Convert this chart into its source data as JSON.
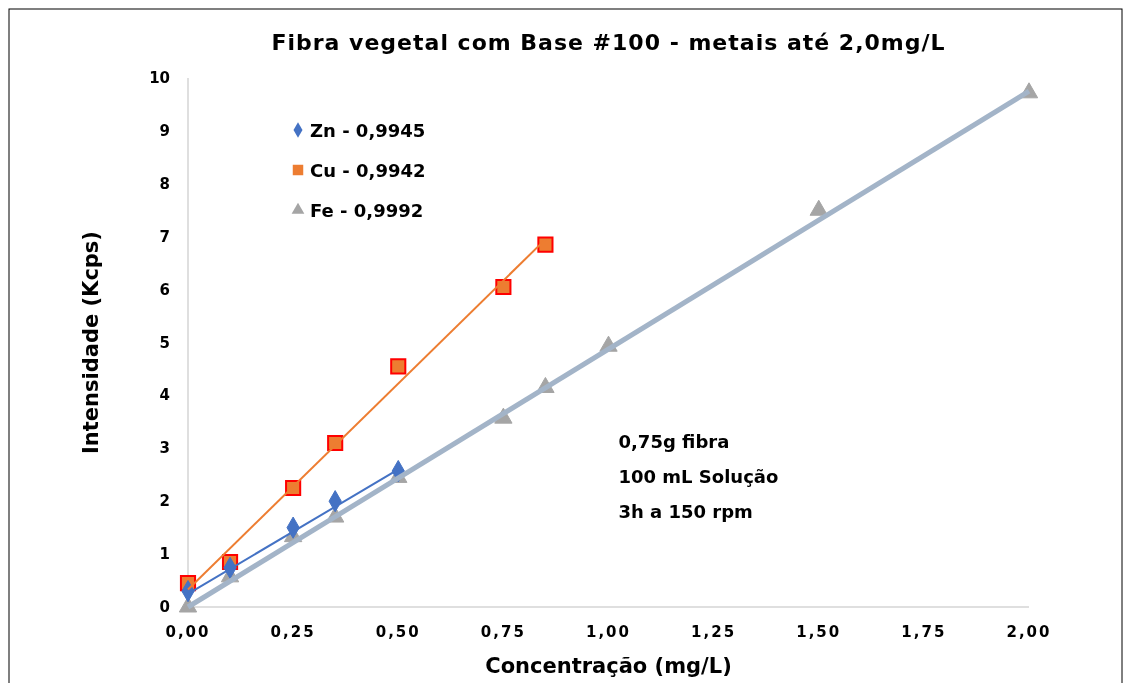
{
  "chart_data": {
    "type": "scatter",
    "title": "Fibra vegetal com Base #100 - metais até 2,0mg/L",
    "xlabel": "Concentração (mg/L)",
    "ylabel": "Intensidade (Kcps)",
    "xlim": [
      0,
      2
    ],
    "xticks": [
      {
        "value": 0,
        "label": "0,00"
      },
      {
        "value": 0.25,
        "label": "0,25"
      },
      {
        "value": 0.5,
        "label": "0,50"
      },
      {
        "value": 0.75,
        "label": "0,75"
      },
      {
        "value": 1,
        "label": "1,00"
      },
      {
        "value": 1.25,
        "label": "1,25"
      },
      {
        "value": 1.5,
        "label": "1,50"
      },
      {
        "value": 1.75,
        "label": "1,75"
      },
      {
        "value": 2,
        "label": "2,00"
      }
    ],
    "ylim": [
      0,
      10
    ],
    "yticks": [
      0,
      1,
      2,
      3,
      4,
      5,
      6,
      7,
      8,
      9,
      10
    ],
    "grid": false,
    "legend": "top left",
    "series": [
      {
        "type": "line",
        "color": "#a3b4c8",
        "x": [
          0,
          2
        ],
        "values": [
          0,
          9.75
        ],
        "marker": "none",
        "line_style": "solid"
      },
      {
        "type": "line",
        "color": "#4472c4",
        "x": [
          0,
          0.5
        ],
        "values": [
          0.25,
          2.6
        ],
        "marker": "none",
        "line_style": "solid"
      },
      {
        "type": "line",
        "color": "#ed7d31",
        "x": [
          0,
          0.85
        ],
        "values": [
          0.33,
          6.95
        ],
        "marker": "none",
        "line_style": "solid"
      },
      {
        "name": "Zn - 0,9945",
        "color": "#4472c4",
        "marker": "diamond",
        "x": [
          0,
          0.1,
          0.25,
          0.35,
          0.5
        ],
        "values": [
          0.3,
          0.74,
          1.5,
          2.0,
          2.57
        ]
      },
      {
        "name": "Cu - 0,9942",
        "color": "#ed7d31",
        "marker": "square",
        "x": [
          0,
          0.1,
          0.25,
          0.35,
          0.5,
          0.75,
          0.85
        ],
        "values": [
          0.45,
          0.85,
          2.25,
          3.1,
          4.55,
          6.05,
          6.85
        ]
      },
      {
        "name": "Fe - 0,9992",
        "color": "#a5a5a5",
        "marker": "triangle",
        "x": [
          0,
          0.1,
          0.25,
          0.35,
          0.5,
          0.75,
          0.85,
          1,
          1.5,
          2
        ],
        "values": [
          0,
          0.57,
          1.33,
          1.7,
          2.45,
          3.57,
          4.15,
          4.93,
          7.5,
          9.72
        ]
      }
    ],
    "annotations": [
      "0,75g fibra",
      "100 mL Solução",
      "3h a 150 rpm"
    ]
  }
}
